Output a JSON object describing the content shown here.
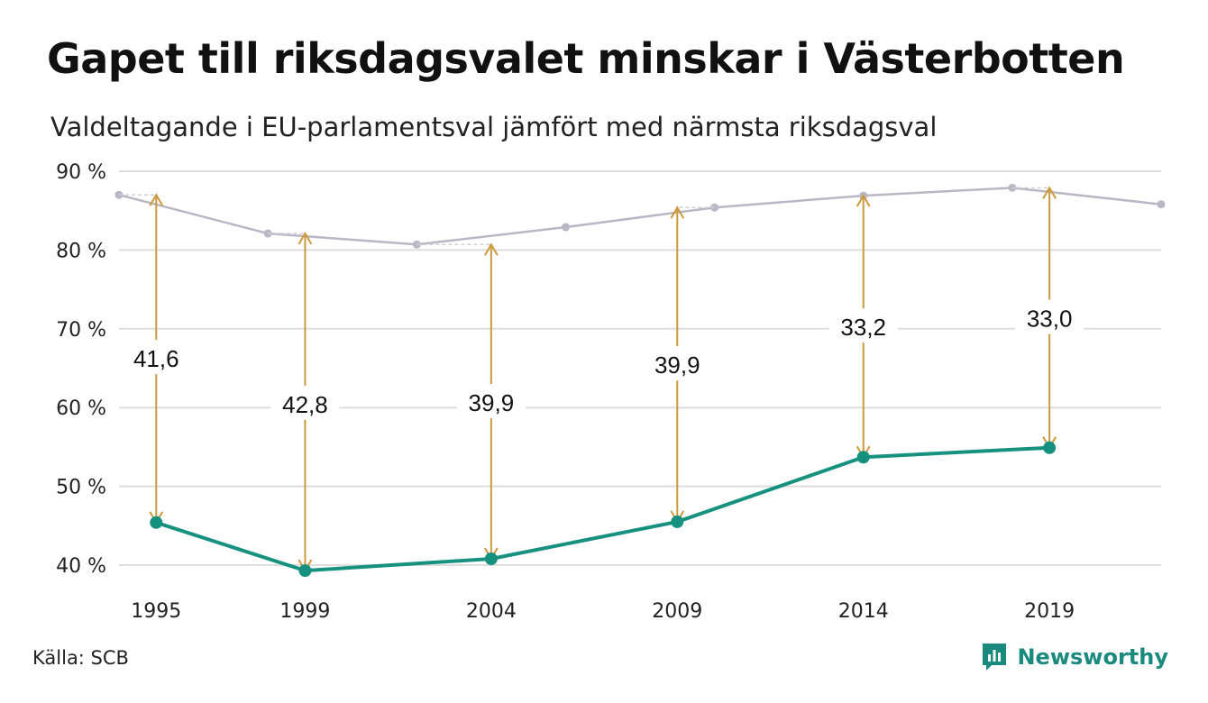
{
  "header": {
    "title": "Gapet till riksdagsvalet minskar i Västerbotten",
    "subtitle": "Valdeltagande i EU-parlamentsval jämfört med närmsta riksdagsval"
  },
  "footer": {
    "source": "Källa: SCB",
    "brand": "Newsworthy"
  },
  "colors": {
    "eu_line": "#17917f",
    "riksdag_line": "#b9b7c6",
    "arrow": "#cc9a3e",
    "grid": "#dddddd",
    "brand": "#1b8a7e"
  },
  "chart_data": {
    "type": "line",
    "title": "Gapet till riksdagsvalet minskar i Västerbotten",
    "subtitle": "Valdeltagande i EU-parlamentsval jämfört med närmsta riksdagsval",
    "xlabel": "",
    "ylabel": "",
    "xlim": [
      1994,
      2022
    ],
    "ylim": [
      38,
      90
    ],
    "yticks": [
      {
        "value": 40,
        "label": "40 %"
      },
      {
        "value": 50,
        "label": "50 %"
      },
      {
        "value": 60,
        "label": "60 %"
      },
      {
        "value": 70,
        "label": "70 %"
      },
      {
        "value": 80,
        "label": "80 %"
      },
      {
        "value": 90,
        "label": "90 %"
      }
    ],
    "xticks": [
      {
        "value": 1995,
        "label": "1995"
      },
      {
        "value": 1999,
        "label": "1999"
      },
      {
        "value": 2004,
        "label": "2004"
      },
      {
        "value": 2009,
        "label": "2009"
      },
      {
        "value": 2014,
        "label": "2014"
      },
      {
        "value": 2019,
        "label": "2019"
      }
    ],
    "grid": true,
    "series": [
      {
        "key": "riksdag",
        "color": "#b9b7c6",
        "points": [
          {
            "x": 1994,
            "y": 87.0
          },
          {
            "x": 1998,
            "y": 82.1
          },
          {
            "x": 2002,
            "y": 80.7
          },
          {
            "x": 2006,
            "y": 82.9
          },
          {
            "x": 2010,
            "y": 85.4
          },
          {
            "x": 2014,
            "y": 86.9
          },
          {
            "x": 2018,
            "y": 87.9
          },
          {
            "x": 2022,
            "y": 85.8
          }
        ]
      },
      {
        "key": "eu",
        "color": "#17917f",
        "points": [
          {
            "x": 1995,
            "y": 45.4
          },
          {
            "x": 1999,
            "y": 39.3
          },
          {
            "x": 2004,
            "y": 40.8
          },
          {
            "x": 2009,
            "y": 45.5
          },
          {
            "x": 2014,
            "y": 53.7
          },
          {
            "x": 2019,
            "y": 54.9
          }
        ]
      }
    ],
    "gaps": [
      {
        "x": 1995,
        "from": 45.4,
        "to": 87.0,
        "label": "41,6",
        "label_y": 66.3
      },
      {
        "x": 1999,
        "from": 39.3,
        "to": 82.1,
        "label": "42,8",
        "label_y": 60.5
      },
      {
        "x": 2004,
        "from": 40.8,
        "to": 80.7,
        "label": "39,9",
        "label_y": 60.7
      },
      {
        "x": 2009,
        "from": 45.5,
        "to": 85.4,
        "label": "39,9",
        "label_y": 65.5
      },
      {
        "x": 2014,
        "from": 53.7,
        "to": 86.9,
        "label": "33,2",
        "label_y": 70.3
      },
      {
        "x": 2019,
        "from": 54.9,
        "to": 87.9,
        "label": "33,0",
        "label_y": 71.4
      }
    ]
  }
}
